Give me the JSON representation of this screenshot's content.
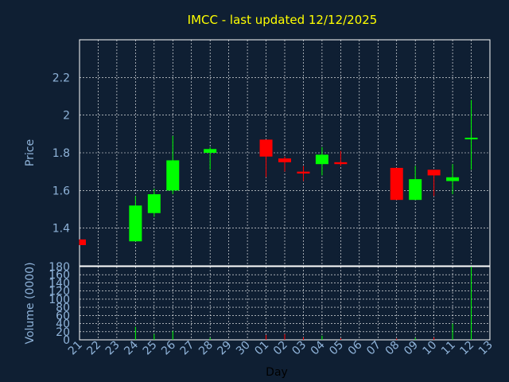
{
  "chart_data": {
    "type": "candlestick",
    "title": "IMCC - last updated 12/12/2025",
    "xlabel": "Day",
    "price_axis": {
      "label": "Price",
      "ylim": [
        1.2,
        2.4
      ],
      "ticks": [
        "1.4",
        "1.6",
        "1.8",
        "2",
        "2.2"
      ]
    },
    "volume_axis": {
      "label": "Volume (0000)",
      "ylim": [
        0,
        180
      ],
      "ticks": [
        "0",
        "20",
        "40",
        "60",
        "80",
        "100",
        "120",
        "140",
        "160",
        "180"
      ]
    },
    "x_ticks": [
      "21",
      "22",
      "23",
      "24",
      "25",
      "26",
      "27",
      "28",
      "29",
      "30",
      "01",
      "02",
      "03",
      "04",
      "05",
      "06",
      "07",
      "08",
      "09",
      "10",
      "11",
      "12",
      "13"
    ],
    "candles": [
      {
        "day": "21",
        "open": 1.34,
        "high": 1.34,
        "low": 1.31,
        "close": 1.31
      },
      {
        "day": "24",
        "open": 1.33,
        "high": 1.57,
        "low": 1.33,
        "close": 1.52
      },
      {
        "day": "25",
        "open": 1.48,
        "high": 1.61,
        "low": 1.46,
        "close": 1.58
      },
      {
        "day": "26",
        "open": 1.6,
        "high": 1.89,
        "low": 1.58,
        "close": 1.76
      },
      {
        "day": "28",
        "open": 1.8,
        "high": 1.83,
        "low": 1.71,
        "close": 1.82
      },
      {
        "day": "01",
        "open": 1.87,
        "high": 1.87,
        "low": 1.67,
        "close": 1.78
      },
      {
        "day": "02",
        "open": 1.77,
        "high": 1.78,
        "low": 1.7,
        "close": 1.75
      },
      {
        "day": "03",
        "open": 1.7,
        "high": 1.73,
        "low": 1.65,
        "close": 1.69
      },
      {
        "day": "04",
        "open": 1.74,
        "high": 1.83,
        "low": 1.68,
        "close": 1.79
      },
      {
        "day": "05",
        "open": 1.75,
        "high": 1.81,
        "low": 1.73,
        "close": 1.74
      },
      {
        "day": "08",
        "open": 1.72,
        "high": 1.72,
        "low": 1.55,
        "close": 1.55
      },
      {
        "day": "09",
        "open": 1.55,
        "high": 1.73,
        "low": 1.55,
        "close": 1.66
      },
      {
        "day": "10",
        "open": 1.71,
        "high": 1.71,
        "low": 1.57,
        "close": 1.68
      },
      {
        "day": "11",
        "open": 1.65,
        "high": 1.74,
        "low": 1.58,
        "close": 1.67
      },
      {
        "day": "12",
        "open": 1.88,
        "high": 2.08,
        "low": 1.71,
        "close": 1.88
      }
    ],
    "volume": [
      {
        "day": "21",
        "value": 0
      },
      {
        "day": "24",
        "value": 32
      },
      {
        "day": "25",
        "value": 14
      },
      {
        "day": "26",
        "value": 22
      },
      {
        "day": "28",
        "value": 5
      },
      {
        "day": "01",
        "value": 12
      },
      {
        "day": "02",
        "value": 14
      },
      {
        "day": "03",
        "value": 6
      },
      {
        "day": "04",
        "value": 10
      },
      {
        "day": "05",
        "value": 4
      },
      {
        "day": "08",
        "value": 3
      },
      {
        "day": "09",
        "value": 5
      },
      {
        "day": "10",
        "value": 6
      },
      {
        "day": "11",
        "value": 40
      },
      {
        "day": "12",
        "value": 180
      }
    ],
    "colors": {
      "up": "#00ff00",
      "down": "#ff0000",
      "neutral": "#00ff00",
      "grid": "#ffffff",
      "text": "#8fb3d9",
      "title": "#ffff00",
      "background": "#0f1f33"
    },
    "grid": true
  }
}
